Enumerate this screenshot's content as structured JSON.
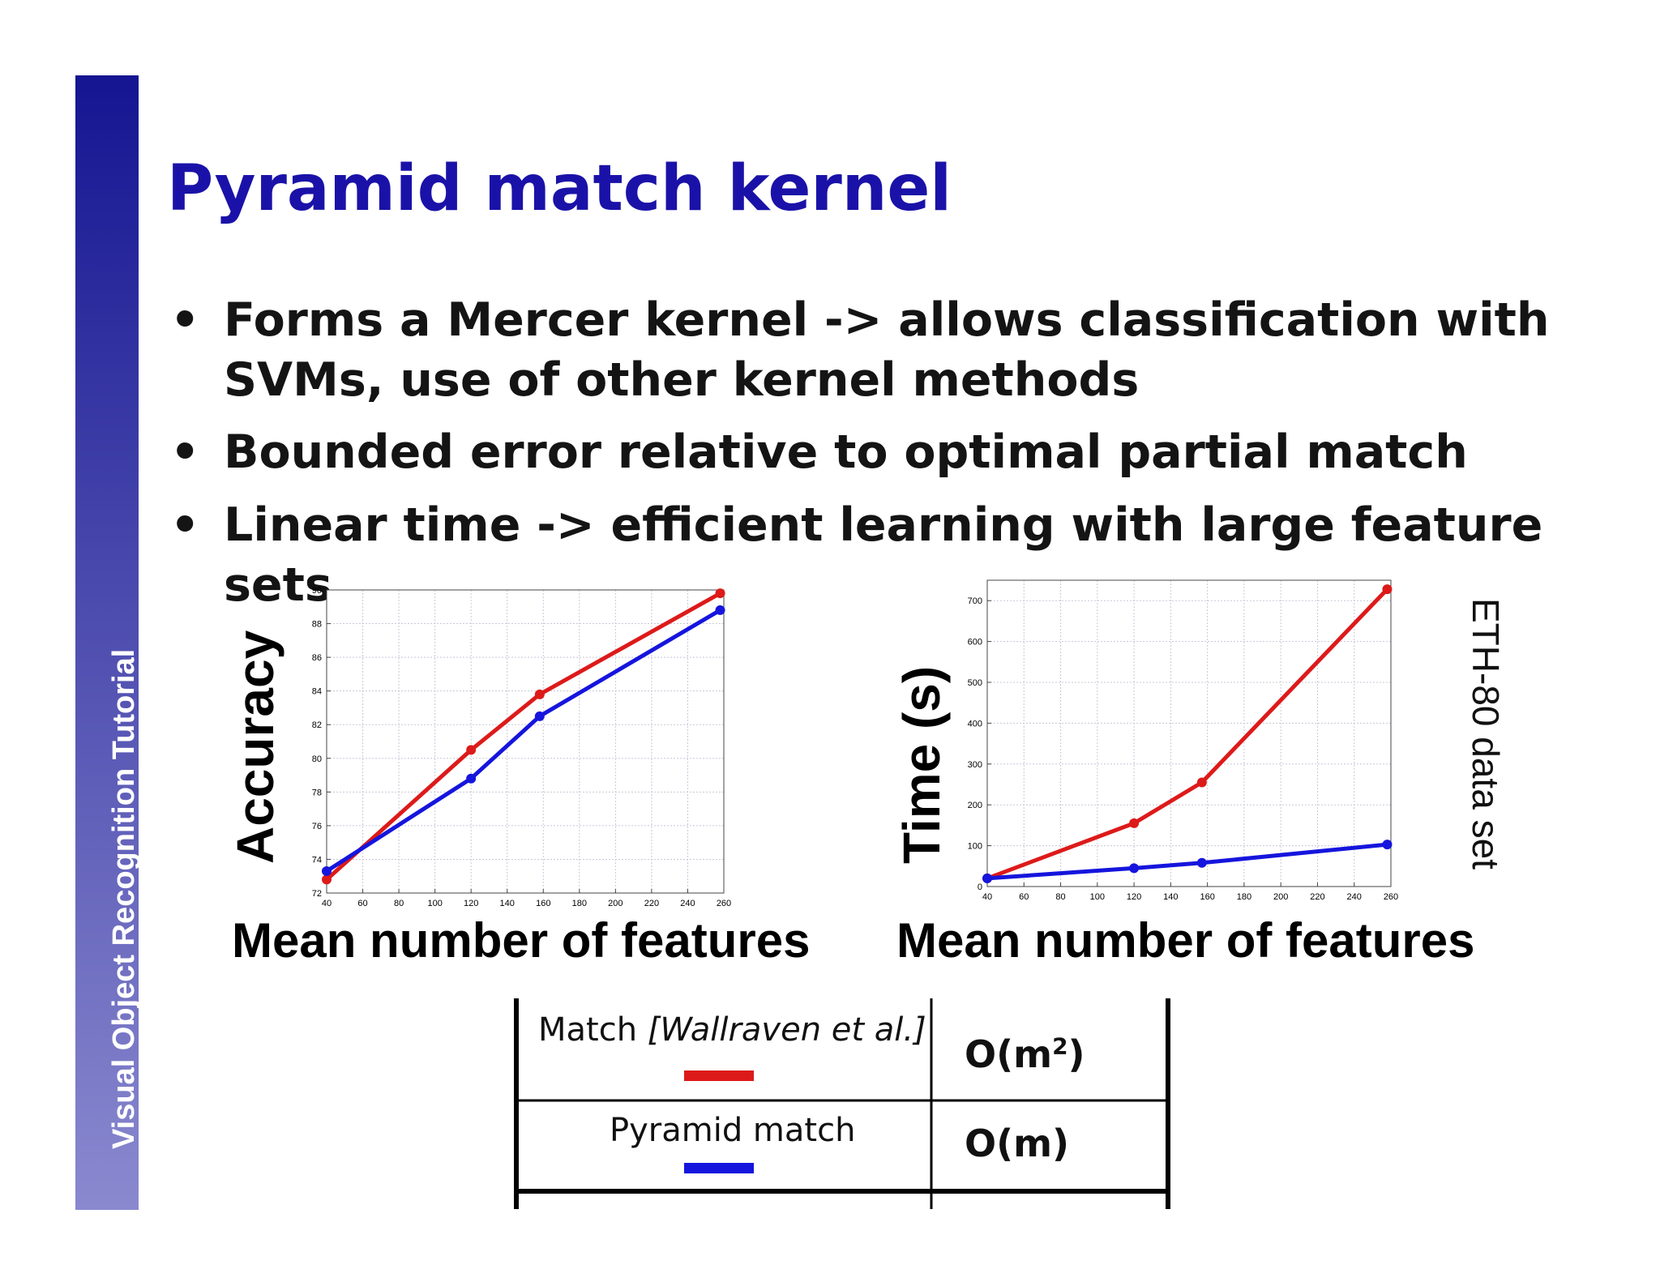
{
  "sidebar": {
    "label": "Visual Object Recognition Tutorial"
  },
  "slide": {
    "title": "Pyramid match kernel",
    "bullets": [
      "Forms a Mercer kernel -> allows classification with SVMs, use of other kernel methods",
      "Bounded error relative to optimal partial match",
      "Linear time -> efficient learning with large feature sets"
    ],
    "bullet_symbol": "•"
  },
  "figure": {
    "side_note": "ETH-80 data set",
    "colors": {
      "match": "#dd1a1a",
      "pyramid": "#1515dd"
    },
    "legend": {
      "rows": [
        {
          "label": "Match ",
          "citation": "[Wallraven et al.]",
          "complexity": "O(m",
          "sup": "2",
          "close": ")",
          "color": "#dd1a1a"
        },
        {
          "label": "Pyramid match",
          "citation": "",
          "complexity": "O(m)",
          "sup": "",
          "close": "",
          "color": "#1515dd"
        }
      ]
    }
  },
  "chart_data": [
    {
      "type": "line",
      "xlabel": "Mean number of features",
      "ylabel": "Accuracy",
      "xlim": [
        40,
        260
      ],
      "ylim": [
        72,
        90
      ],
      "xticks": [
        40,
        60,
        80,
        100,
        120,
        140,
        160,
        180,
        200,
        220,
        240,
        260
      ],
      "yticks": [
        72,
        74,
        76,
        78,
        80,
        82,
        84,
        86,
        88,
        90
      ],
      "grid": true,
      "series": [
        {
          "name": "Match [Wallraven et al.]",
          "color": "#dd1a1a",
          "x": [
            40,
            120,
            158,
            258
          ],
          "y": [
            72.8,
            80.5,
            83.8,
            89.8
          ]
        },
        {
          "name": "Pyramid match",
          "color": "#1515dd",
          "x": [
            40,
            120,
            158,
            258
          ],
          "y": [
            73.3,
            78.8,
            82.5,
            88.8
          ]
        }
      ]
    },
    {
      "type": "line",
      "xlabel": "Mean number of features",
      "ylabel": "Time (s)",
      "xlim": [
        40,
        260
      ],
      "ylim": [
        0,
        750
      ],
      "xticks": [
        40,
        60,
        80,
        100,
        120,
        140,
        160,
        180,
        200,
        220,
        240,
        260
      ],
      "yticks": [
        0,
        100,
        200,
        300,
        400,
        500,
        600,
        700
      ],
      "grid": true,
      "series": [
        {
          "name": "Match [Wallraven et al.]",
          "color": "#dd1a1a",
          "x": [
            40,
            120,
            157,
            258
          ],
          "y": [
            20,
            155,
            255,
            728
          ]
        },
        {
          "name": "Pyramid match",
          "color": "#1515dd",
          "x": [
            40,
            120,
            157,
            258
          ],
          "y": [
            20,
            45,
            58,
            103
          ]
        }
      ]
    }
  ]
}
